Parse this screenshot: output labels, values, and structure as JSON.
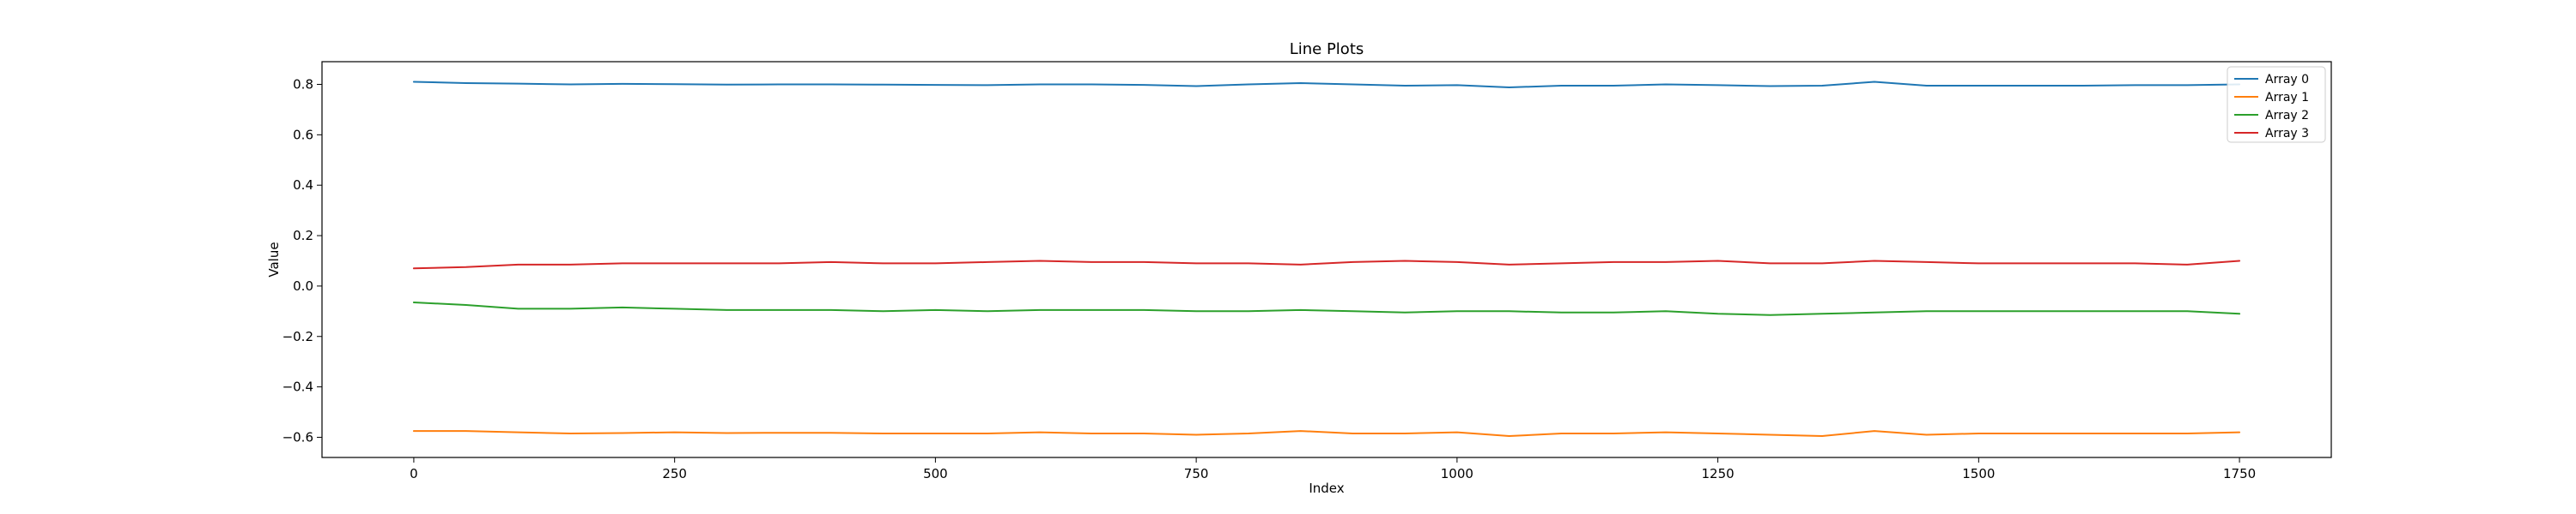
{
  "chart_data": {
    "type": "line",
    "title": "Line Plots",
    "xlabel": "Index",
    "ylabel": "Value",
    "xlim": [
      -88,
      1838
    ],
    "ylim": [
      -0.68,
      0.89
    ],
    "xticks": [
      0,
      250,
      500,
      750,
      1000,
      1250,
      1500,
      1750
    ],
    "xtick_labels": [
      "0",
      "250",
      "500",
      "750",
      "1000",
      "1250",
      "1500",
      "1750"
    ],
    "yticks": [
      -0.6,
      -0.4,
      -0.2,
      0.0,
      0.2,
      0.4,
      0.6,
      0.8
    ],
    "ytick_labels": [
      "−0.6",
      "−0.4",
      "−0.2",
      "0.0",
      "0.2",
      "0.4",
      "0.6",
      "0.8"
    ],
    "grid": false,
    "legend_position": "top-right",
    "x": [
      0,
      50,
      100,
      150,
      200,
      250,
      300,
      350,
      400,
      450,
      500,
      550,
      600,
      650,
      700,
      750,
      800,
      850,
      900,
      950,
      1000,
      1050,
      1100,
      1150,
      1200,
      1250,
      1300,
      1350,
      1400,
      1450,
      1500,
      1550,
      1600,
      1650,
      1700,
      1750
    ],
    "series": [
      {
        "name": "Array 0",
        "color": "#1f77b4",
        "values": [
          0.81,
          0.805,
          0.803,
          0.8,
          0.802,
          0.801,
          0.799,
          0.8,
          0.8,
          0.799,
          0.798,
          0.797,
          0.8,
          0.8,
          0.798,
          0.793,
          0.8,
          0.805,
          0.8,
          0.795,
          0.797,
          0.788,
          0.795,
          0.795,
          0.8,
          0.797,
          0.793,
          0.795,
          0.81,
          0.795,
          0.795,
          0.795,
          0.795,
          0.797,
          0.797,
          0.8
        ]
      },
      {
        "name": "Array 1",
        "color": "#ff7f0e",
        "values": [
          -0.575,
          -0.575,
          -0.58,
          -0.585,
          -0.583,
          -0.58,
          -0.583,
          -0.582,
          -0.582,
          -0.585,
          -0.585,
          -0.585,
          -0.58,
          -0.585,
          -0.585,
          -0.59,
          -0.585,
          -0.575,
          -0.585,
          -0.585,
          -0.58,
          -0.595,
          -0.585,
          -0.585,
          -0.58,
          -0.585,
          -0.59,
          -0.595,
          -0.575,
          -0.59,
          -0.585,
          -0.585,
          -0.585,
          -0.585,
          -0.585,
          -0.58
        ]
      },
      {
        "name": "Array 2",
        "color": "#2ca02c",
        "values": [
          -0.065,
          -0.075,
          -0.09,
          -0.09,
          -0.085,
          -0.09,
          -0.095,
          -0.095,
          -0.095,
          -0.1,
          -0.095,
          -0.1,
          -0.095,
          -0.095,
          -0.095,
          -0.1,
          -0.1,
          -0.095,
          -0.1,
          -0.105,
          -0.1,
          -0.1,
          -0.105,
          -0.105,
          -0.1,
          -0.11,
          -0.115,
          -0.11,
          -0.105,
          -0.1,
          -0.1,
          -0.1,
          -0.1,
          -0.1,
          -0.1,
          -0.11
        ]
      },
      {
        "name": "Array 3",
        "color": "#d62728",
        "values": [
          0.07,
          0.075,
          0.085,
          0.085,
          0.09,
          0.09,
          0.09,
          0.09,
          0.095,
          0.09,
          0.09,
          0.095,
          0.1,
          0.095,
          0.095,
          0.09,
          0.09,
          0.085,
          0.095,
          0.1,
          0.095,
          0.085,
          0.09,
          0.095,
          0.095,
          0.1,
          0.09,
          0.09,
          0.1,
          0.095,
          0.09,
          0.09,
          0.09,
          0.09,
          0.085,
          0.1
        ]
      }
    ]
  }
}
